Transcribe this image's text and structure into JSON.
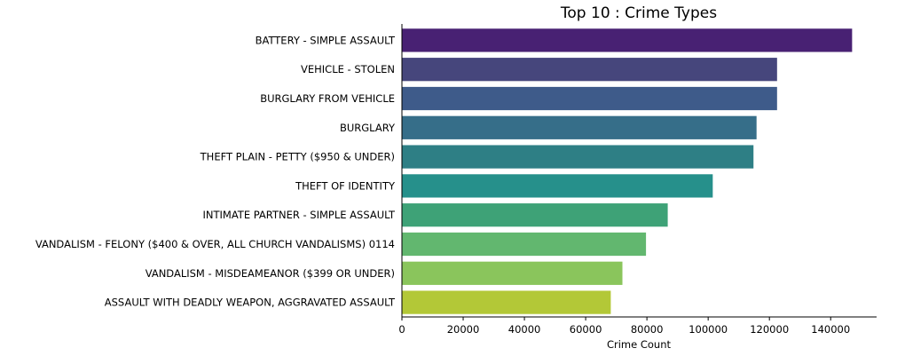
{
  "chart_data": {
    "type": "bar",
    "orientation": "horizontal",
    "title": "Top 10 : Crime Types",
    "xlabel": "Crime Count",
    "ylabel": "",
    "xlim": [
      0,
      155000
    ],
    "xticks": [
      0,
      20000,
      40000,
      60000,
      80000,
      100000,
      120000,
      140000
    ],
    "grid": false,
    "categories": [
      "BATTERY - SIMPLE ASSAULT",
      "VEHICLE - STOLEN",
      "BURGLARY FROM VEHICLE",
      "BURGLARY",
      "THEFT PLAIN - PETTY ($950 & UNDER)",
      "THEFT OF IDENTITY",
      "INTIMATE PARTNER - SIMPLE ASSAULT",
      "VANDALISM - FELONY ($400 & OVER, ALL CHURCH VANDALISMS) 0114",
      "VANDALISM - MISDEAMEANOR ($399 OR UNDER)",
      "ASSAULT WITH DEADLY WEAPON, AGGRAVATED ASSAULT"
    ],
    "values": [
      147000,
      122500,
      122500,
      115800,
      114800,
      101500,
      86800,
      79700,
      72000,
      68200
    ],
    "colors": [
      "#482173",
      "#46467c",
      "#3e5b8a",
      "#366e89",
      "#2e7f85",
      "#26908b",
      "#3ea277",
      "#62b76f",
      "#8ac55c",
      "#b3c837"
    ]
  }
}
